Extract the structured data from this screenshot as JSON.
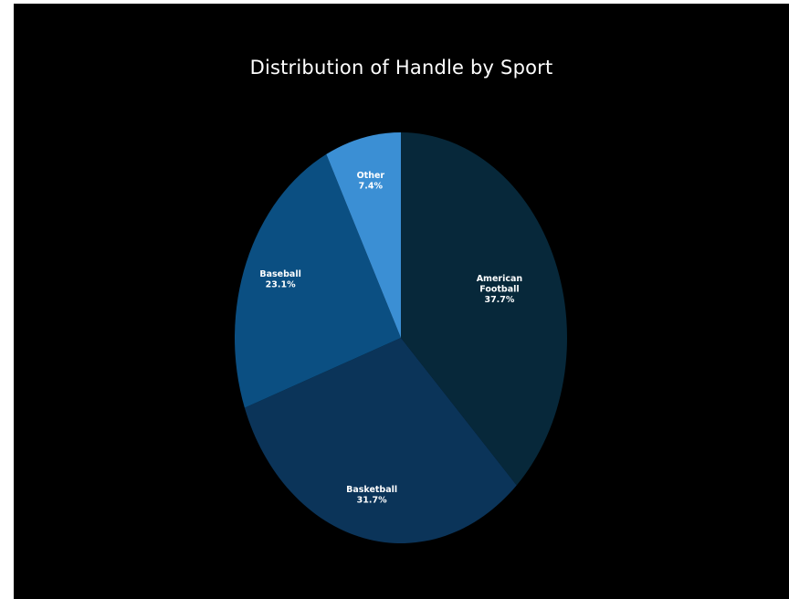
{
  "chart_data": {
    "type": "pie",
    "title": "Distribution of Handle by Sport",
    "slices": [
      {
        "label_lines": [
          "American",
          "Football"
        ],
        "value": 37.7,
        "value_label": "37.7%",
        "color": "#07283a"
      },
      {
        "label_lines": [
          "Basketball"
        ],
        "value": 31.7,
        "value_label": "31.7%",
        "color": "#0b3459"
      },
      {
        "label_lines": [
          "Baseball"
        ],
        "value": 23.1,
        "value_label": "23.1%",
        "color": "#0b4f82"
      },
      {
        "label_lines": [
          "Other"
        ],
        "value": 7.4,
        "value_label": "7.4%",
        "color": "#3b8fd4"
      }
    ],
    "start": "12 o'clock",
    "direction": "clockwise",
    "background": "#000000"
  }
}
